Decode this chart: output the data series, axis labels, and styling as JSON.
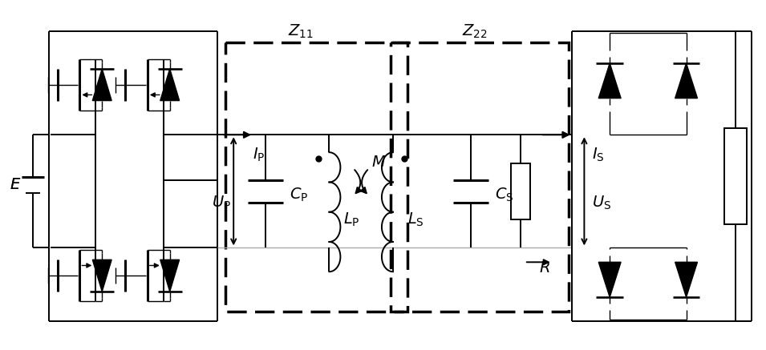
{
  "fig_width": 9.55,
  "fig_height": 4.37,
  "dpi": 100,
  "bg": "#ffffff",
  "black": "#000000",
  "gray": "#aaaaaa",
  "lw": 1.4,
  "lw_thick": 2.2,
  "lw_thin": 1.0
}
